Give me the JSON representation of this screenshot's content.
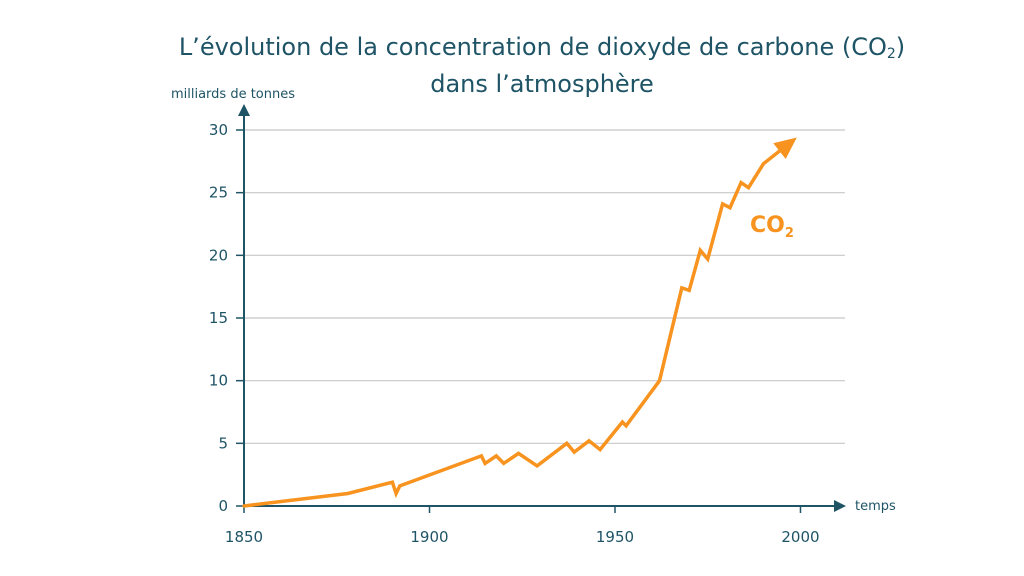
{
  "header": {
    "title_line1_main": "L’évolution de la concentration de dioxyde de carbone (CO",
    "title_line1_sub": "2",
    "title_line1_end": ")",
    "title_line2": "dans l’atmosphère"
  },
  "chart_data": {
    "type": "line",
    "ylabel": "milliards de tonnes",
    "xlabel": "temps",
    "xlim": [
      1850,
      2012
    ],
    "ylim": [
      0,
      30
    ],
    "x_ticks": [
      1850,
      1900,
      1950,
      2000
    ],
    "y_ticks": [
      0,
      5,
      10,
      15,
      20,
      25,
      30
    ],
    "grid": true,
    "colors": {
      "series": "#f7931e",
      "axis": "#1e5466",
      "grid": "#c8c8c8"
    },
    "series": [
      {
        "name": "CO",
        "name_sub": "2",
        "x": [
          1850,
          1878,
          1890,
          1891,
          1892,
          1914,
          1915,
          1918,
          1920,
          1924,
          1929,
          1937,
          1939,
          1943,
          1946,
          1952,
          1953,
          1962,
          1968,
          1970,
          1973,
          1975,
          1979,
          1981,
          1984,
          1986,
          1990,
          1999
        ],
        "values": [
          0,
          1,
          1.9,
          1.0,
          1.6,
          4.0,
          3.4,
          4.0,
          3.4,
          4.2,
          3.2,
          5.0,
          4.3,
          5.2,
          4.5,
          6.7,
          6.4,
          10.0,
          17.4,
          17.2,
          20.4,
          19.7,
          24.1,
          23.8,
          25.8,
          25.4,
          27.3,
          29.4
        ]
      }
    ]
  }
}
